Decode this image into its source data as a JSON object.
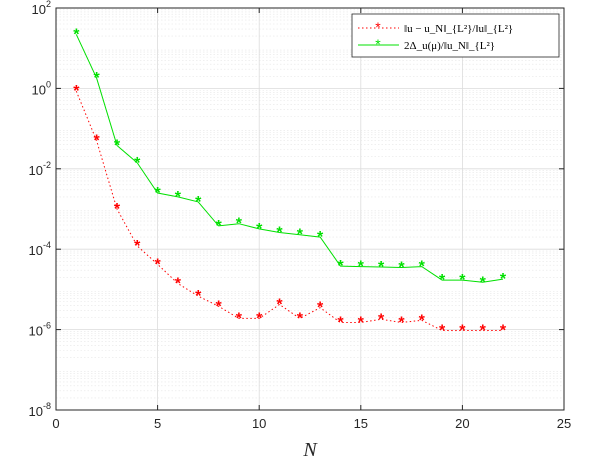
{
  "chart_data": {
    "type": "line",
    "xlabel": "N",
    "ylabel": "",
    "xlim": [
      0,
      25
    ],
    "ylim": [
      1e-08,
      100
    ],
    "yscale": "log",
    "grid": true,
    "minor_grid": true,
    "legend_position": "top-right",
    "x_ticks": [
      0,
      5,
      10,
      15,
      20,
      25
    ],
    "x_tick_labels": [
      "0",
      "5",
      "10",
      "15",
      "20",
      "25"
    ],
    "y_ticks": [
      1e-08,
      1e-06,
      0.0001,
      0.01,
      1,
      100
    ],
    "y_tick_labels": [
      {
        "base": "10",
        "exp": "-8"
      },
      {
        "base": "10",
        "exp": "-6"
      },
      {
        "base": "10",
        "exp": "-4"
      },
      {
        "base": "10",
        "exp": "-2"
      },
      {
        "base": "10",
        "exp": "0"
      },
      {
        "base": "10",
        "exp": "2"
      }
    ],
    "x": [
      1,
      2,
      3,
      4,
      5,
      6,
      7,
      8,
      9,
      10,
      11,
      12,
      13,
      14,
      15,
      16,
      17,
      18,
      19,
      20,
      21,
      22
    ],
    "series": [
      {
        "name": "‖u − u_N‖_{L²}/‖u‖_{L²}",
        "color": "#ff0000",
        "line_style": "dotted",
        "marker": "asterisk",
        "values": [
          0.85,
          0.05,
          0.001,
          0.00012,
          4.2e-05,
          1.4e-05,
          6.8e-06,
          3.8e-06,
          1.9e-06,
          1.9e-06,
          4.2e-06,
          1.9e-06,
          3.5e-06,
          1.5e-06,
          1.5e-06,
          1.8e-06,
          1.5e-06,
          1.7e-06,
          9.5e-07,
          9.5e-07,
          9.5e-07,
          9.5e-07
        ]
      },
      {
        "name": "2Δ_u(μ)/‖u_N‖_{L²}",
        "color": "#00e000",
        "line_style": "solid",
        "marker": "asterisk",
        "values": [
          22,
          1.8,
          0.038,
          0.014,
          0.0025,
          0.002,
          0.0015,
          0.00038,
          0.00043,
          0.00032,
          0.00026,
          0.00023,
          0.0002,
          3.8e-05,
          3.7e-05,
          3.6e-05,
          3.5e-05,
          3.7e-05,
          1.7e-05,
          1.7e-05,
          1.5e-05,
          1.8e-05
        ]
      }
    ]
  }
}
